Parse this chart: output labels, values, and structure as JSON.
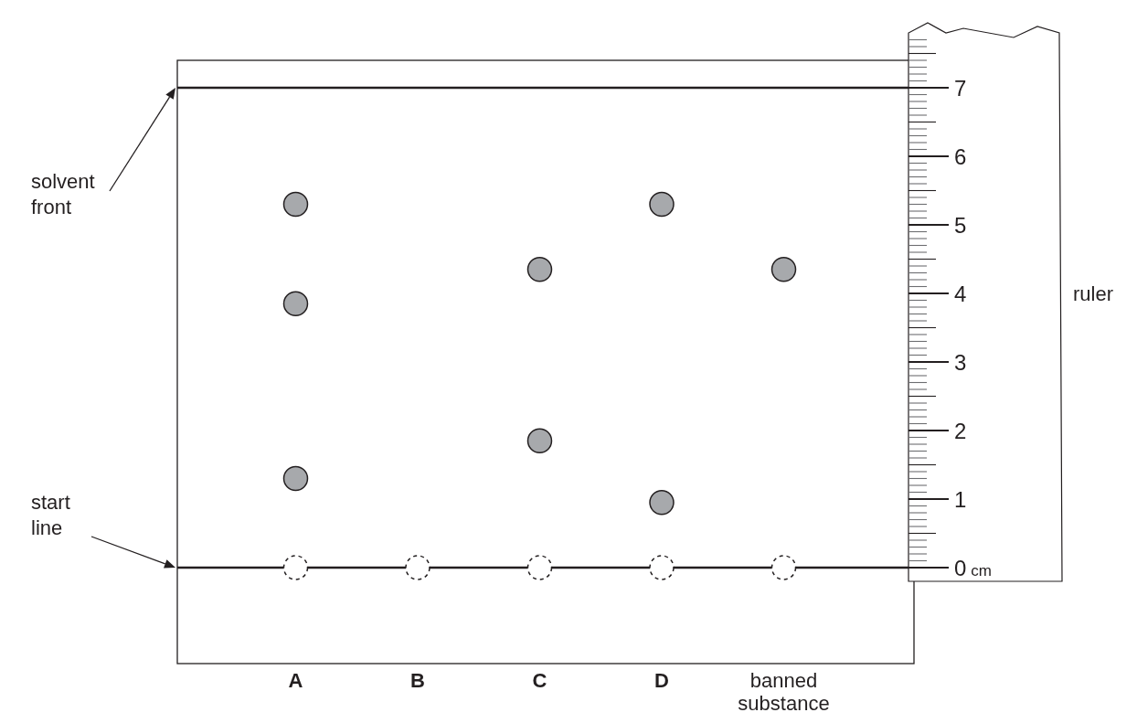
{
  "chart_data": {
    "type": "scatter",
    "categories": [
      "A",
      "B",
      "C",
      "D",
      "banned substance"
    ],
    "series": [
      {
        "x": [
          "A",
          "A",
          "A",
          "C",
          "C",
          "D",
          "D",
          "banned substance"
        ],
        "values": [
          5.3,
          3.85,
          1.3,
          4.35,
          1.85,
          5.3,
          0.95,
          4.35
        ],
        "color": "#a7a9ac"
      },
      {
        "x": [
          "A",
          "B",
          "C",
          "D",
          "banned substance"
        ],
        "values": [
          0,
          0,
          0,
          0,
          0
        ],
        "color": "#231f20",
        "line_style": "dashed"
      }
    ],
    "ylabel": "ruler",
    "ylim": [
      -1.4,
      7.4
    ],
    "yticks": [
      {
        "value": 0,
        "label": "0 cm"
      },
      1,
      2,
      3,
      4,
      5,
      6,
      7
    ],
    "ref_lines": [
      {
        "axis": "y",
        "value": 7
      },
      {
        "axis": "y",
        "value": 0
      }
    ],
    "annotations": [
      "solvent front",
      "start line"
    ],
    "marker": "circle",
    "grid": false
  }
}
